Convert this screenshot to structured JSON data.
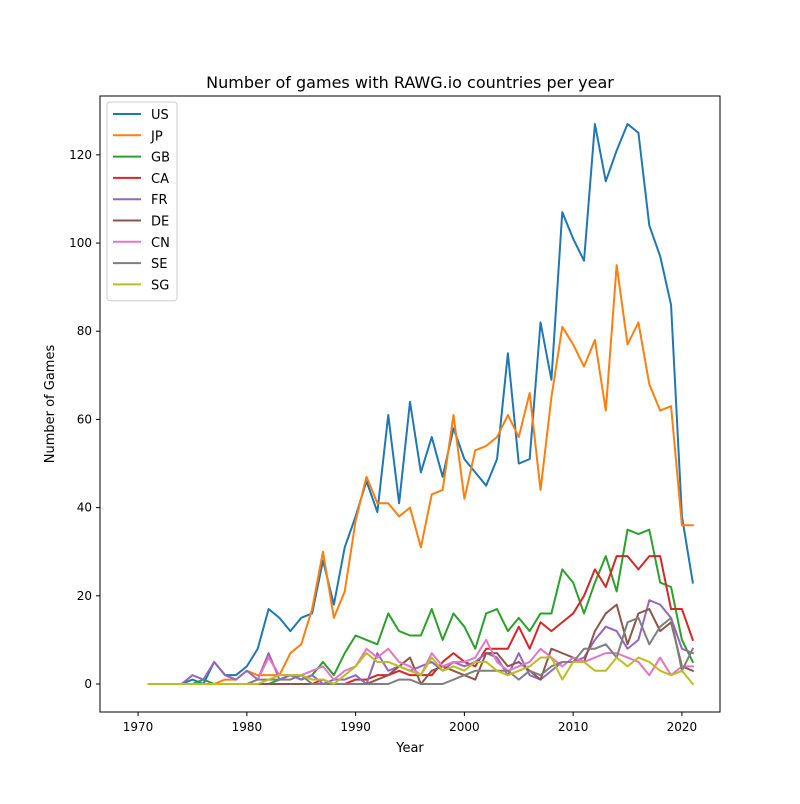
{
  "chart_data": {
    "type": "line",
    "title": "Number of games with RAWG.io countries per year",
    "xlabel": "Year",
    "ylabel": "Number of Games",
    "xlim": [
      1966.5,
      2023.5
    ],
    "ylim": [
      -6.35,
      133.35
    ],
    "x_ticks": [
      1970,
      1980,
      1990,
      2000,
      2010,
      2020
    ],
    "y_ticks": [
      0,
      20,
      40,
      60,
      80,
      100,
      120
    ],
    "grid": false,
    "legend_position": "upper-left",
    "x": [
      1971,
      1972,
      1973,
      1974,
      1975,
      1976,
      1977,
      1978,
      1979,
      1980,
      1981,
      1982,
      1983,
      1984,
      1985,
      1986,
      1987,
      1988,
      1989,
      1990,
      1991,
      1992,
      1993,
      1994,
      1995,
      1996,
      1997,
      1998,
      1999,
      2000,
      2001,
      2002,
      2003,
      2004,
      2005,
      2006,
      2007,
      2008,
      2009,
      2010,
      2011,
      2012,
      2013,
      2014,
      2015,
      2016,
      2017,
      2018,
      2019,
      2020,
      2021
    ],
    "series": [
      {
        "name": "US",
        "color": "#1f77b4",
        "values": [
          0,
          0,
          0,
          0,
          1,
          0,
          5,
          2,
          2,
          4,
          8,
          17,
          15,
          12,
          15,
          16,
          28,
          18,
          31,
          38,
          46,
          39,
          61,
          41,
          64,
          48,
          56,
          47,
          58,
          51,
          48,
          45,
          51,
          75,
          50,
          51,
          82,
          69,
          107,
          101,
          96,
          127,
          114,
          121,
          127,
          125,
          104,
          97,
          86,
          38,
          23
        ]
      },
      {
        "name": "JP",
        "color": "#ff7f0e",
        "values": [
          0,
          0,
          0,
          0,
          0,
          0,
          0,
          1,
          1,
          3,
          2,
          2,
          2,
          7,
          9,
          17,
          30,
          15,
          21,
          37,
          47,
          41,
          41,
          38,
          40,
          31,
          43,
          44,
          61,
          42,
          53,
          54,
          56,
          61,
          56,
          66,
          44,
          65,
          81,
          77,
          72,
          78,
          62,
          95,
          77,
          82,
          68,
          62,
          63,
          36,
          36
        ]
      },
      {
        "name": "GB",
        "color": "#2ca02c",
        "values": [
          0,
          0,
          0,
          0,
          0,
          1,
          0,
          0,
          0,
          0,
          0,
          0,
          1,
          2,
          1,
          2,
          5,
          2,
          7,
          11,
          10,
          9,
          16,
          12,
          11,
          11,
          17,
          10,
          16,
          13,
          8,
          16,
          17,
          12,
          15,
          12,
          16,
          16,
          26,
          23,
          16,
          23,
          29,
          21,
          35,
          34,
          35,
          23,
          22,
          10,
          5
        ]
      },
      {
        "name": "CA",
        "color": "#d62728",
        "values": [
          0,
          0,
          0,
          0,
          0,
          0,
          0,
          0,
          0,
          0,
          0,
          0,
          0,
          0,
          0,
          0,
          1,
          0,
          0,
          1,
          1,
          2,
          2,
          3,
          2,
          2,
          2,
          5,
          7,
          5,
          4,
          8,
          8,
          8,
          13,
          8,
          14,
          12,
          14,
          16,
          20,
          26,
          22,
          29,
          29,
          26,
          29,
          29,
          17,
          17,
          10
        ]
      },
      {
        "name": "FR",
        "color": "#9467bd",
        "values": [
          0,
          0,
          0,
          0,
          2,
          1,
          5,
          2,
          1,
          3,
          1,
          7,
          1,
          2,
          1,
          2,
          0,
          1,
          1,
          2,
          0,
          7,
          3,
          4,
          3,
          4,
          5,
          3,
          5,
          4,
          5,
          7,
          6,
          2,
          7,
          2,
          1,
          3,
          5,
          5,
          6,
          10,
          13,
          12,
          8,
          10,
          19,
          18,
          15,
          8,
          7
        ]
      },
      {
        "name": "DE",
        "color": "#8c564b",
        "values": [
          0,
          0,
          0,
          0,
          0,
          0,
          0,
          0,
          0,
          0,
          0,
          0,
          0,
          0,
          0,
          0,
          0,
          0,
          0,
          0,
          0,
          1,
          2,
          4,
          6,
          0,
          3,
          4,
          3,
          2,
          1,
          7,
          7,
          4,
          5,
          3,
          1,
          8,
          7,
          6,
          5,
          12,
          16,
          18,
          9,
          16,
          17,
          12,
          14,
          4,
          3
        ]
      },
      {
        "name": "CN",
        "color": "#e377c2",
        "values": [
          0,
          0,
          0,
          0,
          0,
          0,
          0,
          0,
          0,
          0,
          1,
          6,
          2,
          2,
          2,
          3,
          4,
          1,
          3,
          4,
          8,
          6,
          8,
          5,
          4,
          2,
          7,
          4,
          5,
          5,
          6,
          10,
          5,
          3,
          4,
          5,
          8,
          6,
          4,
          6,
          5,
          6,
          7,
          7,
          6,
          5,
          2,
          6,
          2,
          4,
          4
        ]
      },
      {
        "name": "SE",
        "color": "#7f7f7f",
        "values": [
          0,
          0,
          0,
          0,
          0,
          0,
          0,
          0,
          0,
          0,
          1,
          1,
          1,
          1,
          2,
          0,
          0,
          0,
          0,
          0,
          0,
          0,
          0,
          1,
          1,
          0,
          0,
          0,
          1,
          2,
          3,
          3,
          3,
          3,
          1,
          3,
          2,
          4,
          5,
          5,
          8,
          8,
          9,
          6,
          14,
          15,
          9,
          13,
          15,
          3,
          8
        ]
      },
      {
        "name": "SG",
        "color": "#bcbd22",
        "values": [
          0,
          0,
          0,
          0,
          0,
          0,
          0,
          0,
          0,
          0,
          0,
          1,
          2,
          2,
          2,
          1,
          1,
          0,
          2,
          4,
          7,
          5,
          5,
          4,
          3,
          2,
          6,
          3,
          4,
          3,
          5,
          5,
          3,
          2,
          3,
          4,
          6,
          6,
          1,
          5,
          5,
          3,
          3,
          6,
          4,
          6,
          5,
          3,
          2,
          3,
          0
        ]
      }
    ]
  }
}
